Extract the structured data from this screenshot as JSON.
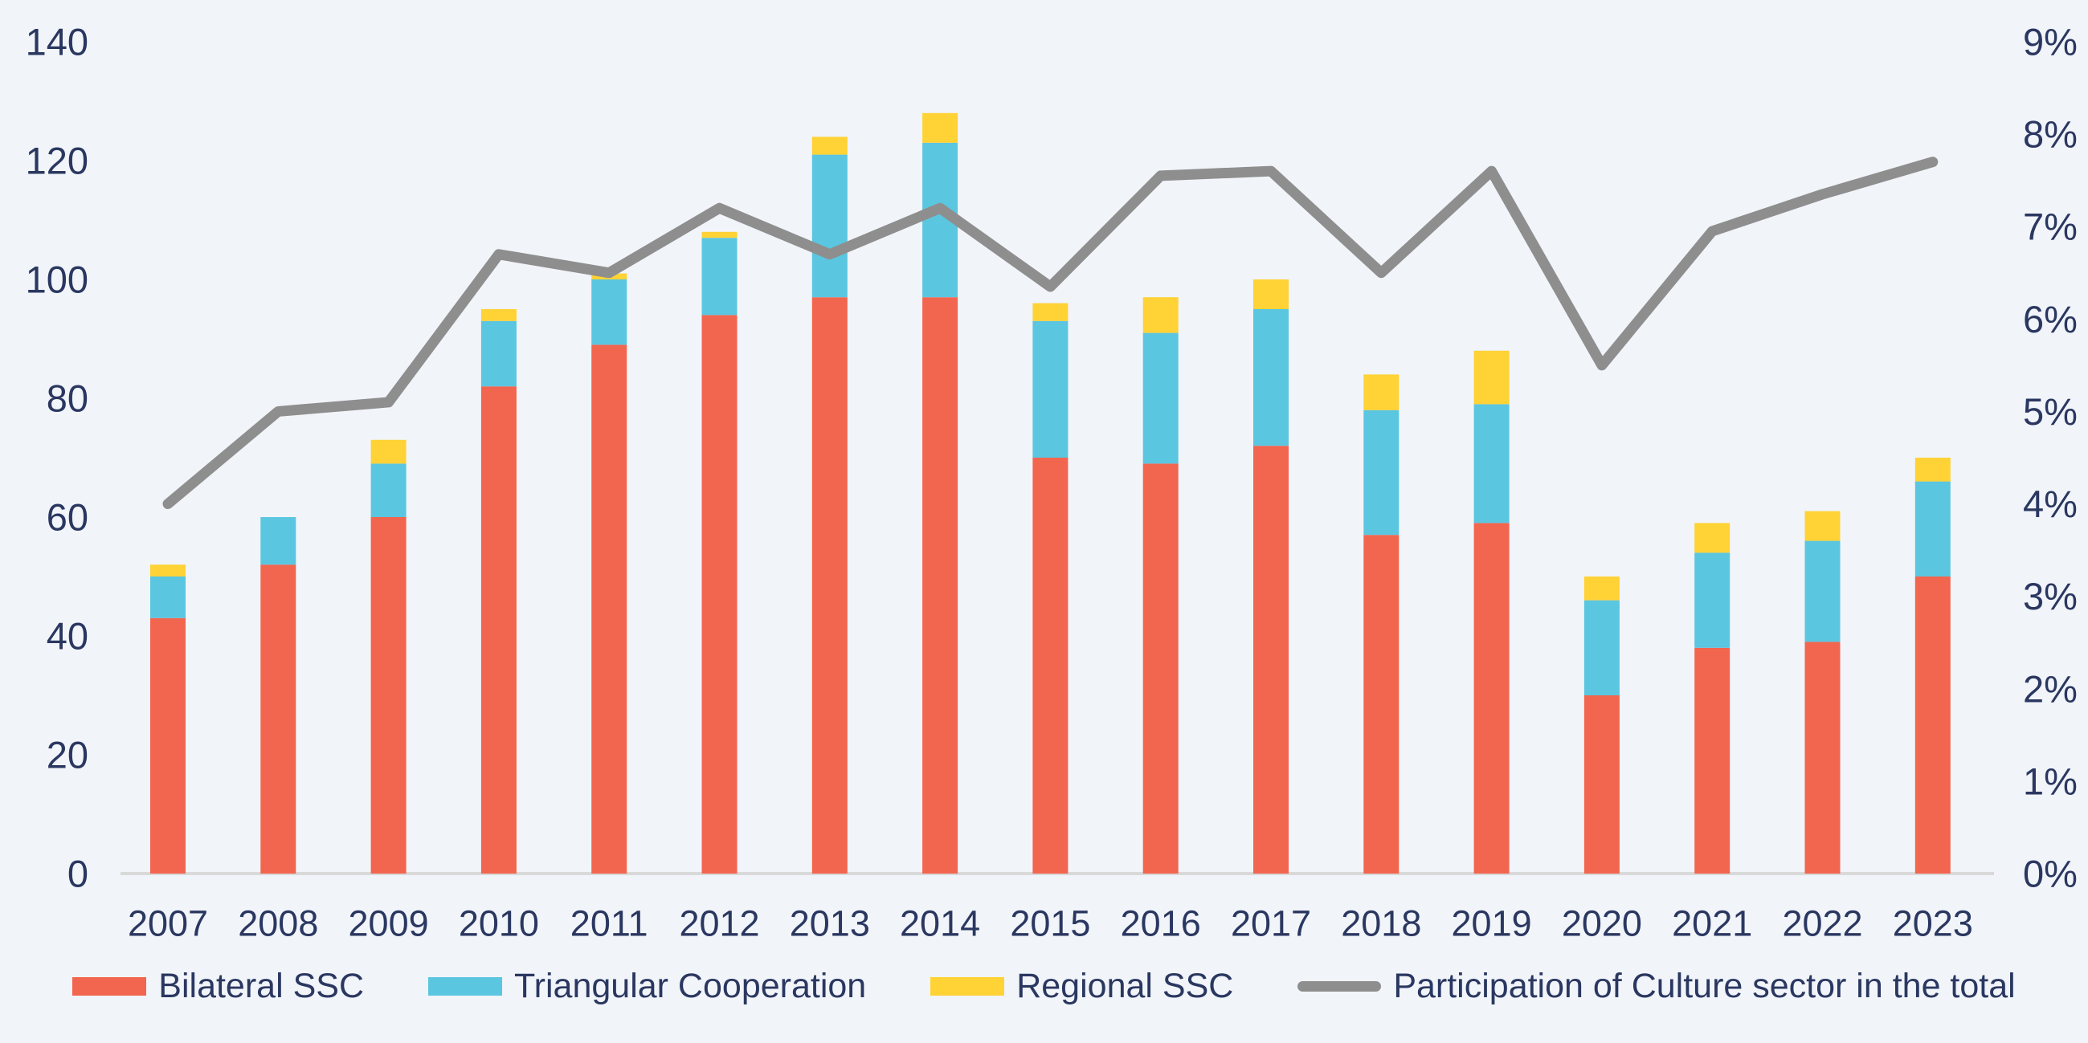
{
  "background_color": "#F1F4F9",
  "text_color": "#2A3760",
  "axis_line_color": "#D9D9D9",
  "chart_data": {
    "type": "bar",
    "subtype": "stacked-bars-with-right-axis-line",
    "title": "",
    "xlabel": "",
    "ylabel": "",
    "grid": false,
    "legend_position": "bottom",
    "categories": [
      "2007",
      "2008",
      "2009",
      "2010",
      "2011",
      "2012",
      "2013",
      "2014",
      "2015",
      "2016",
      "2017",
      "2018",
      "2019",
      "2020",
      "2021",
      "2022",
      "2023"
    ],
    "series": [
      {
        "name": "Bilateral SSC",
        "type": "bar",
        "stack": "ssc",
        "color": "#F2654E",
        "values": [
          43,
          52,
          60,
          82,
          89,
          94,
          97,
          97,
          70,
          69,
          72,
          57,
          59,
          30,
          38,
          39,
          50
        ]
      },
      {
        "name": "Triangular Cooperation",
        "type": "bar",
        "stack": "ssc",
        "color": "#5BC6E0",
        "values": [
          7,
          8,
          9,
          11,
          11,
          13,
          24,
          26,
          23,
          22,
          23,
          21,
          20,
          16,
          16,
          17,
          16
        ]
      },
      {
        "name": "Regional SSC",
        "type": "bar",
        "stack": "ssc",
        "color": "#FFD235",
        "values": [
          2,
          0,
          4,
          2,
          1,
          1,
          3,
          5,
          3,
          6,
          5,
          6,
          9,
          4,
          5,
          5,
          4
        ]
      },
      {
        "name": "Participation of Culture sector in the total",
        "type": "line",
        "axis": "right",
        "color": "#8E8E8E",
        "values": [
          4.0,
          5.0,
          5.1,
          6.7,
          6.5,
          7.2,
          6.7,
          7.2,
          6.35,
          7.55,
          7.6,
          6.5,
          7.6,
          5.5,
          6.95,
          7.35,
          7.7
        ]
      }
    ],
    "stack_totals": [
      52,
      60,
      73,
      95,
      101,
      108,
      124,
      128,
      96,
      97,
      100,
      84,
      88,
      50,
      59,
      61,
      70
    ],
    "left_axis": {
      "min": 0,
      "max": 140,
      "step": 20,
      "tick_labels": [
        "0",
        "20",
        "40",
        "60",
        "80",
        "100",
        "120",
        "140"
      ]
    },
    "right_axis": {
      "min": 0,
      "max": 9,
      "step": 1,
      "tick_labels": [
        "0%",
        "1%",
        "2%",
        "3%",
        "4%",
        "5%",
        "6%",
        "7%",
        "8%",
        "9%"
      ]
    }
  },
  "legend": {
    "items": [
      {
        "label": "Bilateral SSC",
        "swatch": "rect",
        "color": "#F2654E"
      },
      {
        "label": "Triangular Cooperation",
        "swatch": "rect",
        "color": "#5BC6E0"
      },
      {
        "label": "Regional SSC",
        "swatch": "rect",
        "color": "#FFD235"
      },
      {
        "label": "Participation of Culture sector in the total",
        "swatch": "line",
        "color": "#8E8E8E"
      }
    ]
  }
}
